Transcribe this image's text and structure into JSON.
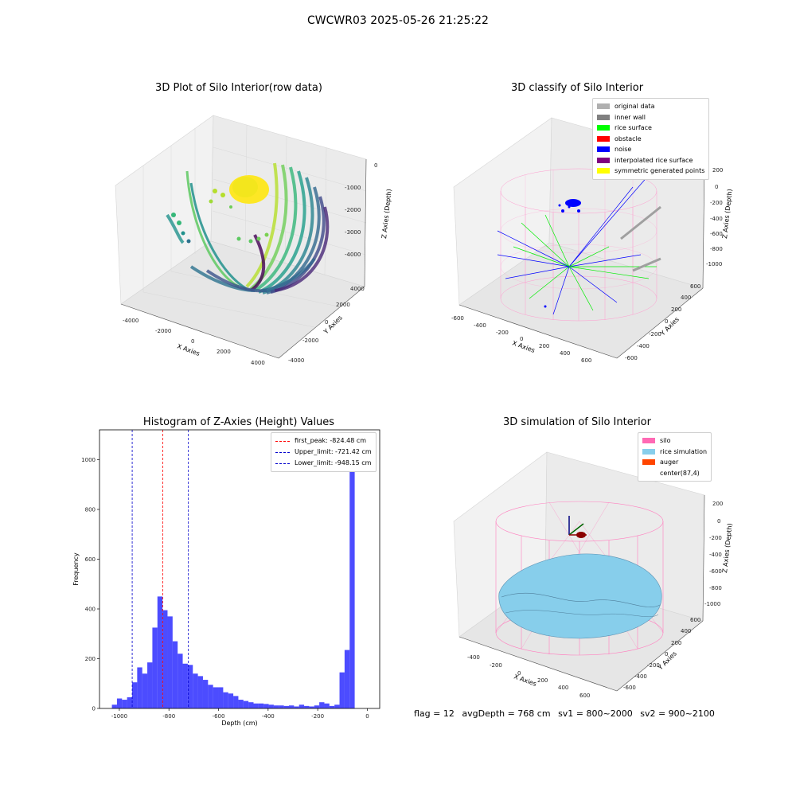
{
  "suptitle": "CWCWR03 2025-05-26 21:25:22",
  "plot1": {
    "title": "3D Plot of Silo Interior(row data)",
    "xlabel": "X Axies",
    "ylabel": "Y Axies",
    "zlabel": "Z Axies (Depth)",
    "xticks": [
      "-4000",
      "-2000",
      "0",
      "2000",
      "4000"
    ],
    "yticks": [
      "-4000",
      "-2000",
      "0",
      "2000",
      "4000"
    ],
    "zticks": [
      "-4000",
      "-3000",
      "-2000",
      "-1000",
      "0"
    ]
  },
  "plot2": {
    "title": "3D classify of Silo Interior",
    "xlabel": "X Axies",
    "ylabel": "Y Axies",
    "zlabel": "Z Axies (Depth)",
    "xticks": [
      "-600",
      "-400",
      "-200",
      "0",
      "200",
      "400",
      "600"
    ],
    "yticks": [
      "-600",
      "-400",
      "-200",
      "0",
      "200",
      "400",
      "600"
    ],
    "zticks": [
      "-1000",
      "-800",
      "-600",
      "-400",
      "-200",
      "0",
      "200"
    ],
    "legend": [
      {
        "label": "original data",
        "color": "#b0b0b0"
      },
      {
        "label": "inner wall",
        "color": "#808080"
      },
      {
        "label": "rice surface",
        "color": "#00ff00"
      },
      {
        "label": "obstacle",
        "color": "#ff0000"
      },
      {
        "label": "noise",
        "color": "#0000ff"
      },
      {
        "label": "interpolated rice surface",
        "color": "#800080"
      },
      {
        "label": "symmetric generated points",
        "color": "#ffff00"
      }
    ]
  },
  "plot3": {
    "title": "Histogram of Z-Axies (Height) Values",
    "xlabel": "Depth (cm)",
    "ylabel": "Frequency",
    "legend": [
      {
        "label": "first_peak: -824.48 cm",
        "color": "#ff0000"
      },
      {
        "label": "Upper_limit: -721.42 cm",
        "color": "#0000cc"
      },
      {
        "label": "Lower_limit: -948.15 cm",
        "color": "#0000cc"
      }
    ]
  },
  "plot4": {
    "title": "3D simulation of Silo Interior",
    "xlabel": "X Axies",
    "ylabel": "Y Axies",
    "zlabel": "Z Axies (Depth)",
    "xticks": [
      "-400",
      "-200",
      "0",
      "200",
      "400",
      "600"
    ],
    "yticks": [
      "-600",
      "-400",
      "-200",
      "0",
      "200",
      "400",
      "600"
    ],
    "zticks": [
      "-1000",
      "-800",
      "-600",
      "-400",
      "-200",
      "0",
      "200"
    ],
    "legend": [
      {
        "label": "silo",
        "color": "#ff69b4"
      },
      {
        "label": "rice simulation",
        "color": "#87ceeb"
      },
      {
        "label": "auger",
        "color": "#ff4500"
      },
      {
        "label": "center(87,4)",
        "color": "#ffffff"
      }
    ]
  },
  "footer": {
    "flag": "flag = 12",
    "avg": "avgDepth = 768 cm",
    "sv1": "sv1 = 800~2000",
    "sv2": "sv2 = 900~2100"
  },
  "chart_data": [
    {
      "type": "scatter",
      "title": "3D Plot of Silo Interior(row data)",
      "xlabel": "X Axies",
      "ylabel": "Y Axies",
      "zlabel": "Z Axies (Depth)",
      "xlim": [
        -4500,
        4500
      ],
      "ylim": [
        -4500,
        4500
      ],
      "zlim": [
        -4500,
        300
      ],
      "colormap": "viridis"
    },
    {
      "type": "scatter",
      "title": "3D classify of Silo Interior",
      "xlim": [
        -650,
        750
      ],
      "ylim": [
        -650,
        700
      ],
      "zlim": [
        -1100,
        300
      ]
    },
    {
      "type": "bar",
      "title": "Histogram of Z-Axies (Height) Values",
      "xlabel": "Depth (cm)",
      "ylabel": "Frequency",
      "xlim": [
        -1080,
        50
      ],
      "ylim": [
        0,
        1120
      ],
      "xticks": [
        -1000,
        -800,
        -600,
        -400,
        -200,
        0
      ],
      "yticks": [
        0,
        200,
        400,
        600,
        800,
        1000
      ],
      "bin_start": -1030,
      "bin_width": 20.4,
      "values": [
        15,
        40,
        35,
        45,
        105,
        165,
        140,
        185,
        325,
        450,
        395,
        370,
        270,
        220,
        180,
        175,
        140,
        130,
        115,
        95,
        85,
        85,
        65,
        60,
        50,
        35,
        30,
        25,
        20,
        20,
        18,
        15,
        12,
        12,
        10,
        12,
        8,
        15,
        10,
        8,
        12,
        25,
        20,
        10,
        15,
        145,
        235,
        1100
      ],
      "vlines": [
        {
          "x": -824.48,
          "label": "first_peak: -824.48 cm",
          "color": "#ff0000"
        },
        {
          "x": -721.42,
          "label": "Upper_limit: -721.42 cm",
          "color": "#0000cc"
        },
        {
          "x": -948.15,
          "label": "Lower_limit: -948.15 cm",
          "color": "#0000cc"
        }
      ],
      "bar_color": "#0000ff"
    },
    {
      "type": "area",
      "title": "3D simulation of Silo Interior",
      "xlim": [
        -550,
        750
      ],
      "ylim": [
        -650,
        700
      ],
      "zlim": [
        -1050,
        300
      ],
      "center": [
        87,
        4
      ]
    }
  ]
}
